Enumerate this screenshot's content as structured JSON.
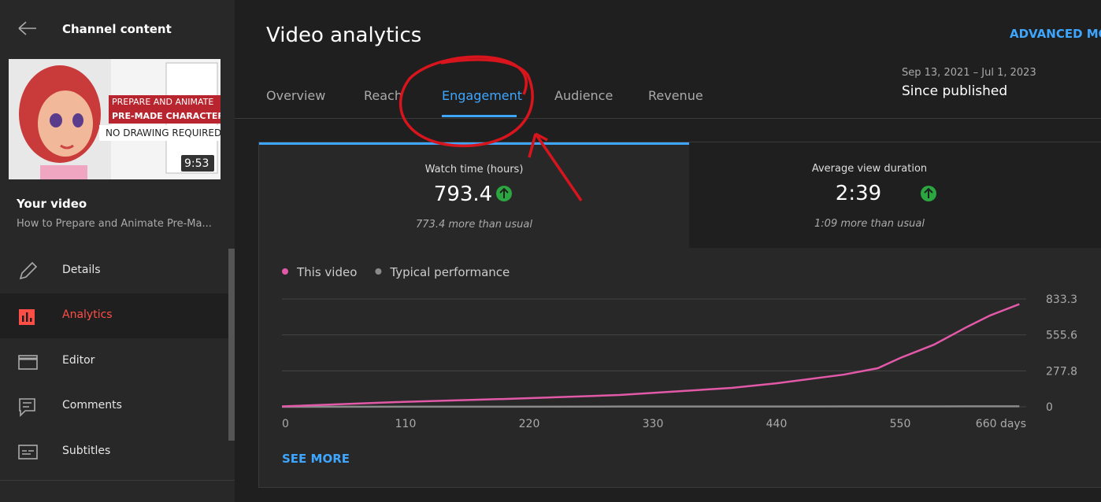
{
  "sidebar": {
    "title": "Channel content",
    "thumbnail": {
      "lines": [
        "PREPARE AND ANIMATE",
        "PRE-MADE CHARACTERS",
        "NO DRAWING REQUIRED"
      ],
      "duration": "9:53"
    },
    "your_video": "Your video",
    "video_title": "How to Prepare and Animate Pre-Ma...",
    "menu": [
      "Details",
      "Analytics",
      "Editor",
      "Comments",
      "Subtitles"
    ]
  },
  "header": {
    "title": "Video analytics",
    "advanced_mode": "ADVANCED MODE"
  },
  "tabs": [
    "Overview",
    "Reach",
    "Engagement",
    "Audience",
    "Revenue"
  ],
  "date_range": {
    "dates": "Sep 13, 2021 – Jul 1, 2023",
    "label": "Since published"
  },
  "metrics": [
    {
      "label": "Watch time (hours)",
      "value": "793.4",
      "note": "773.4 more than usual"
    },
    {
      "label": "Average view duration",
      "value": "2:39",
      "note": "1:09 more than usual"
    }
  ],
  "chart_data": {
    "type": "line",
    "x": [
      0,
      100,
      200,
      300,
      400,
      440,
      500,
      530,
      550,
      580,
      610,
      630,
      656
    ],
    "series": [
      {
        "name": "This video",
        "color": "#e259a8",
        "values": [
          3,
          36,
          61,
          91,
          146,
          182,
          249,
          298,
          377,
          480,
          620,
          706,
          793.4
        ]
      },
      {
        "name": "Typical performance",
        "color": "#8a8a8a",
        "values": [
          0,
          1,
          1,
          2,
          2,
          2,
          3,
          3,
          3,
          3,
          4,
          4,
          4
        ]
      }
    ],
    "xlim": [
      0,
      660
    ],
    "xticks": [
      0,
      110,
      220,
      330,
      440,
      550,
      {
        "value": 660,
        "label": "660 days"
      }
    ],
    "ylim": [
      0,
      833.3
    ],
    "yticks": [
      0,
      277.8,
      555.6,
      833.3
    ],
    "grid": true
  },
  "see_more": "SEE MORE"
}
